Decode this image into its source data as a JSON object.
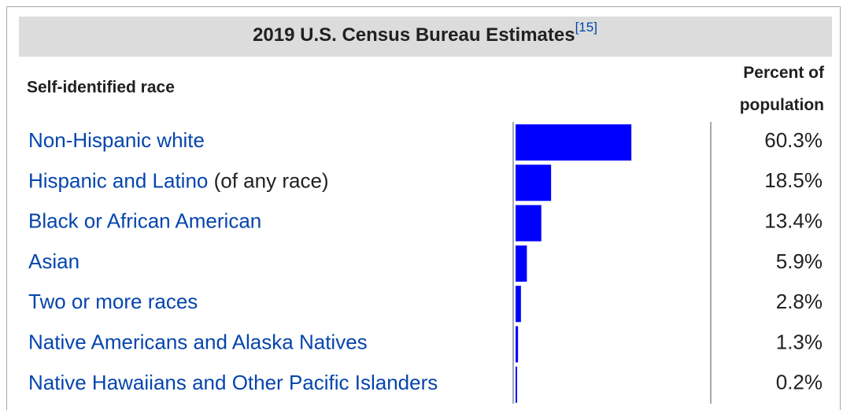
{
  "chart_data": {
    "type": "bar",
    "title": "2019 U.S. Census Bureau Estimates",
    "title_reference": "[15]",
    "category_header": "Self-identified race",
    "value_header": "Percent of population",
    "categories": [
      "Non-Hispanic white",
      "Hispanic and Latino",
      "Black or African American",
      "Asian",
      "Two or more races",
      "Native Americans and Alaska Natives",
      "Native Hawaiians and Other Pacific Islanders"
    ],
    "annotations": [
      "(of any race)"
    ],
    "values": [
      60.3,
      18.5,
      13.4,
      5.9,
      2.8,
      1.3,
      0.2
    ],
    "value_labels": [
      "60.3%",
      "18.5%",
      "13.4%",
      "5.9%",
      "2.8%",
      "1.3%",
      "0.2%"
    ],
    "color": "#0000ff"
  }
}
